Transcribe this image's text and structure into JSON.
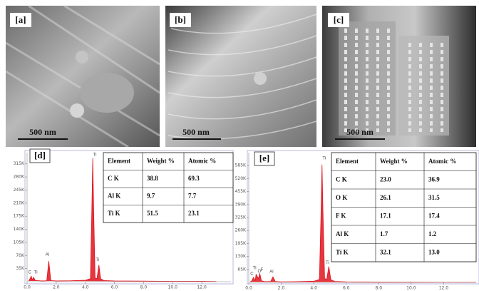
{
  "panels": [
    {
      "label": "[a]",
      "scale": "500 nm"
    },
    {
      "label": "[b]",
      "scale": "500 nm"
    },
    {
      "label": "[c]",
      "scale": "500 nm"
    },
    {
      "label": "[d]"
    },
    {
      "label": "[e]"
    }
  ],
  "chart_data": [
    {
      "type": "spectrum",
      "x": [
        0.1,
        0.2,
        0.28,
        0.36,
        0.45,
        0.55,
        0.7,
        1.0,
        1.35,
        1.49,
        1.63,
        2.0,
        3.0,
        4.0,
        4.35,
        4.45,
        4.51,
        4.57,
        4.67,
        4.8,
        4.93,
        5.05,
        5.3,
        6.0,
        8.0,
        10.0,
        12.0,
        13.0
      ],
      "series": [
        {
          "color": "#e0141e",
          "values": [
            2000,
            8000,
            15000,
            5000,
            12000,
            4000,
            3000,
            2000,
            2500,
            55000,
            3000,
            2000,
            2500,
            4000,
            8000,
            200000,
            330000,
            200000,
            10000,
            8000,
            45000,
            8000,
            3000,
            2000,
            1500,
            1000,
            800,
            500
          ]
        }
      ],
      "xlim": [
        0,
        14
      ],
      "ylim": [
        0,
        345000
      ],
      "xticks": [
        {
          "value": 0,
          "label": "0.0"
        },
        {
          "value": 2,
          "label": "2.0"
        },
        {
          "value": 4,
          "label": "4.0"
        },
        {
          "value": 6,
          "label": "6.0"
        },
        {
          "value": 8,
          "label": "8.0"
        },
        {
          "value": 10,
          "label": "10.0"
        },
        {
          "value": 12,
          "label": "12.0"
        }
      ],
      "yticks": [
        {
          "value": 35000,
          "label": "35K"
        },
        {
          "value": 70000,
          "label": "70K"
        },
        {
          "value": 105000,
          "label": "105K"
        },
        {
          "value": 140000,
          "label": "140K"
        },
        {
          "value": 175000,
          "label": "175K"
        },
        {
          "value": 210000,
          "label": "210K"
        },
        {
          "value": 245000,
          "label": "245K"
        },
        {
          "value": 280000,
          "label": "280K"
        },
        {
          "value": 315000,
          "label": "315K"
        }
      ],
      "annotations": [
        {
          "text": "C",
          "x": 0.28,
          "y": 15000
        },
        {
          "text": "Ti",
          "x": 0.45,
          "y": 12000
        },
        {
          "text": "Al",
          "x": 1.49,
          "y": 55000
        },
        {
          "text": "Ti",
          "x": 4.51,
          "y": 330000
        },
        {
          "text": "Ti",
          "x": 4.93,
          "y": 45000
        }
      ]
    },
    {
      "type": "spectrum",
      "x": [
        0.1,
        0.2,
        0.28,
        0.4,
        0.45,
        0.52,
        0.6,
        0.68,
        0.78,
        1.0,
        1.35,
        1.49,
        1.63,
        2.0,
        3.0,
        4.0,
        4.35,
        4.45,
        4.51,
        4.57,
        4.67,
        4.8,
        4.93,
        5.05,
        5.3,
        6.0,
        8.0,
        10.0,
        12.0,
        14.0
      ],
      "series": [
        {
          "color": "#e0141e",
          "values": [
            3000,
            9000,
            25000,
            10000,
            40000,
            30000,
            20000,
            45000,
            8000,
            4000,
            5000,
            28000,
            5000,
            3000,
            4000,
            6000,
            15000,
            350000,
            590000,
            350000,
            20000,
            15000,
            80000,
            14000,
            5000,
            3000,
            2000,
            1500,
            1000,
            800
          ]
        }
      ],
      "xlim": [
        0,
        14
      ],
      "ylim": [
        0,
        650000
      ],
      "xticks": [
        {
          "value": 0,
          "label": "0.0"
        },
        {
          "value": 2,
          "label": "2.0"
        },
        {
          "value": 4,
          "label": "4.0"
        },
        {
          "value": 6,
          "label": "6.0"
        },
        {
          "value": 8,
          "label": "8.0"
        },
        {
          "value": 10,
          "label": "10.0"
        },
        {
          "value": 12,
          "label": "12.0"
        }
      ],
      "yticks": [
        {
          "value": 65000,
          "label": "65K"
        },
        {
          "value": 130000,
          "label": "130K"
        },
        {
          "value": 195000,
          "label": "195K"
        },
        {
          "value": 260000,
          "label": "260K"
        },
        {
          "value": 325000,
          "label": "325K"
        },
        {
          "value": 390000,
          "label": "390K"
        },
        {
          "value": 455000,
          "label": "455K"
        },
        {
          "value": 520000,
          "label": "520K"
        },
        {
          "value": 585000,
          "label": "585K"
        }
      ],
      "annotations": [
        {
          "text": "C",
          "x": 0.28,
          "y": 25000
        },
        {
          "text": "O",
          "x": 0.52,
          "y": 30000
        },
        {
          "text": "Ti",
          "x": 0.45,
          "y": 40000
        },
        {
          "text": "F",
          "x": 0.68,
          "y": 45000
        },
        {
          "text": "Al",
          "x": 1.49,
          "y": 28000
        },
        {
          "text": "Ti",
          "x": 4.51,
          "y": 590000
        },
        {
          "text": "Ti",
          "x": 4.93,
          "y": 80000
        }
      ]
    }
  ],
  "tables": [
    {
      "header": [
        "Element",
        "Weight %",
        "Atomic %"
      ],
      "rows": [
        [
          "C K",
          "38.8",
          "69.3"
        ],
        [
          "Al K",
          "9.7",
          "7.7"
        ],
        [
          "Ti K",
          "51.5",
          "23.1"
        ]
      ]
    },
    {
      "header": [
        "Element",
        "Weight %",
        "Atomic %"
      ],
      "rows": [
        [
          "C K",
          "23.0",
          "36.9"
        ],
        [
          "O K",
          "26.1",
          "31.5"
        ],
        [
          "F K",
          "17.1",
          "17.4"
        ],
        [
          "Al K",
          "1.7",
          "1.2"
        ],
        [
          "Ti K",
          "32.1",
          "13.0"
        ]
      ]
    }
  ]
}
